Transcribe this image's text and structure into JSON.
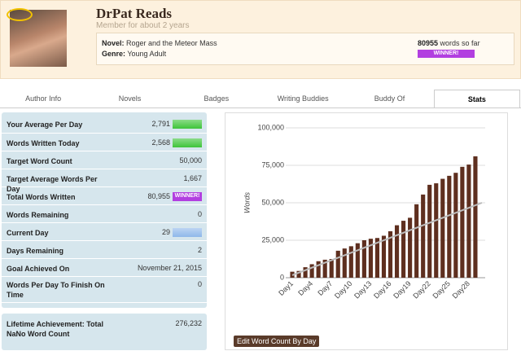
{
  "header": {
    "name": "DrPat Reads",
    "member_since": "Member for about 2 years",
    "novel_label": "Novel:",
    "novel": "Roger and the Meteor Mass",
    "genre_label": "Genre:",
    "genre": "Young Adult",
    "word_count": "80955",
    "word_count_suffix": "words so far",
    "badge": "WINNER!"
  },
  "tabs": [
    "Author Info",
    "Novels",
    "Badges",
    "Writing Buddies",
    "Buddy Of",
    "Stats"
  ],
  "active_tab": 5,
  "stats": [
    {
      "label": "Your Average Per Day",
      "value": "2,791"
    },
    {
      "label": "Words Written Today",
      "value": "2,568"
    },
    {
      "label": "Target Word Count",
      "value": "50,000"
    },
    {
      "label": "Target Average Words Per Day",
      "value": "1,667"
    },
    {
      "label": "Total Words Written",
      "value": "80,955",
      "badge": "WINNER!"
    },
    {
      "label": "Words Remaining",
      "value": "0"
    },
    {
      "label": "Current Day",
      "value": "29"
    },
    {
      "label": "Days Remaining",
      "value": "2"
    },
    {
      "label": "Goal Achieved On",
      "value": "November 21, 2015"
    },
    {
      "label": "Words Per Day To Finish On Time",
      "value": "0"
    }
  ],
  "lifetime": {
    "label": "Lifetime Achievement: Total NaNo Word Count",
    "value": "276,232"
  },
  "button": "Edit Word Count By Day",
  "chart_data": {
    "type": "bar",
    "y_label": "Words",
    "categories": [
      "Day1",
      null,
      null,
      "Day4",
      null,
      null,
      "Day7",
      null,
      null,
      "Day10",
      null,
      null,
      "Day13",
      null,
      null,
      "Day16",
      null,
      null,
      "Day19",
      null,
      null,
      "Day22",
      null,
      null,
      "Day25",
      null,
      null,
      "Day28",
      null,
      null
    ],
    "series": [
      {
        "type": "bar",
        "color": "#5e2f1f",
        "values": [
          4000,
          4500,
          7000,
          9000,
          11000,
          12000,
          12500,
          18000,
          19500,
          21000,
          23000,
          25000,
          26000,
          26500,
          28000,
          31000,
          35000,
          38000,
          40000,
          49000,
          55500,
          62000,
          63000,
          66000,
          68000,
          70000,
          74000,
          75500,
          81000,
          null
        ]
      },
      {
        "type": "line",
        "color": "#bbbbbb",
        "values": [
          1667,
          3333,
          5000,
          6667,
          8333,
          10000,
          11667,
          13333,
          15000,
          16667,
          18333,
          20000,
          21667,
          23333,
          25000,
          26667,
          28333,
          30000,
          31667,
          33333,
          35000,
          36667,
          38333,
          40000,
          41667,
          43333,
          45000,
          46667,
          48333,
          50000
        ]
      }
    ],
    "ylim": [
      0,
      100000
    ],
    "yticks": [
      0,
      {
        "value": 25000,
        "label": "25,000"
      },
      {
        "value": 50000,
        "label": "50,000"
      },
      {
        "value": 75000,
        "label": "75,000"
      },
      {
        "value": 100000,
        "label": "100,000"
      }
    ],
    "grid": true
  }
}
